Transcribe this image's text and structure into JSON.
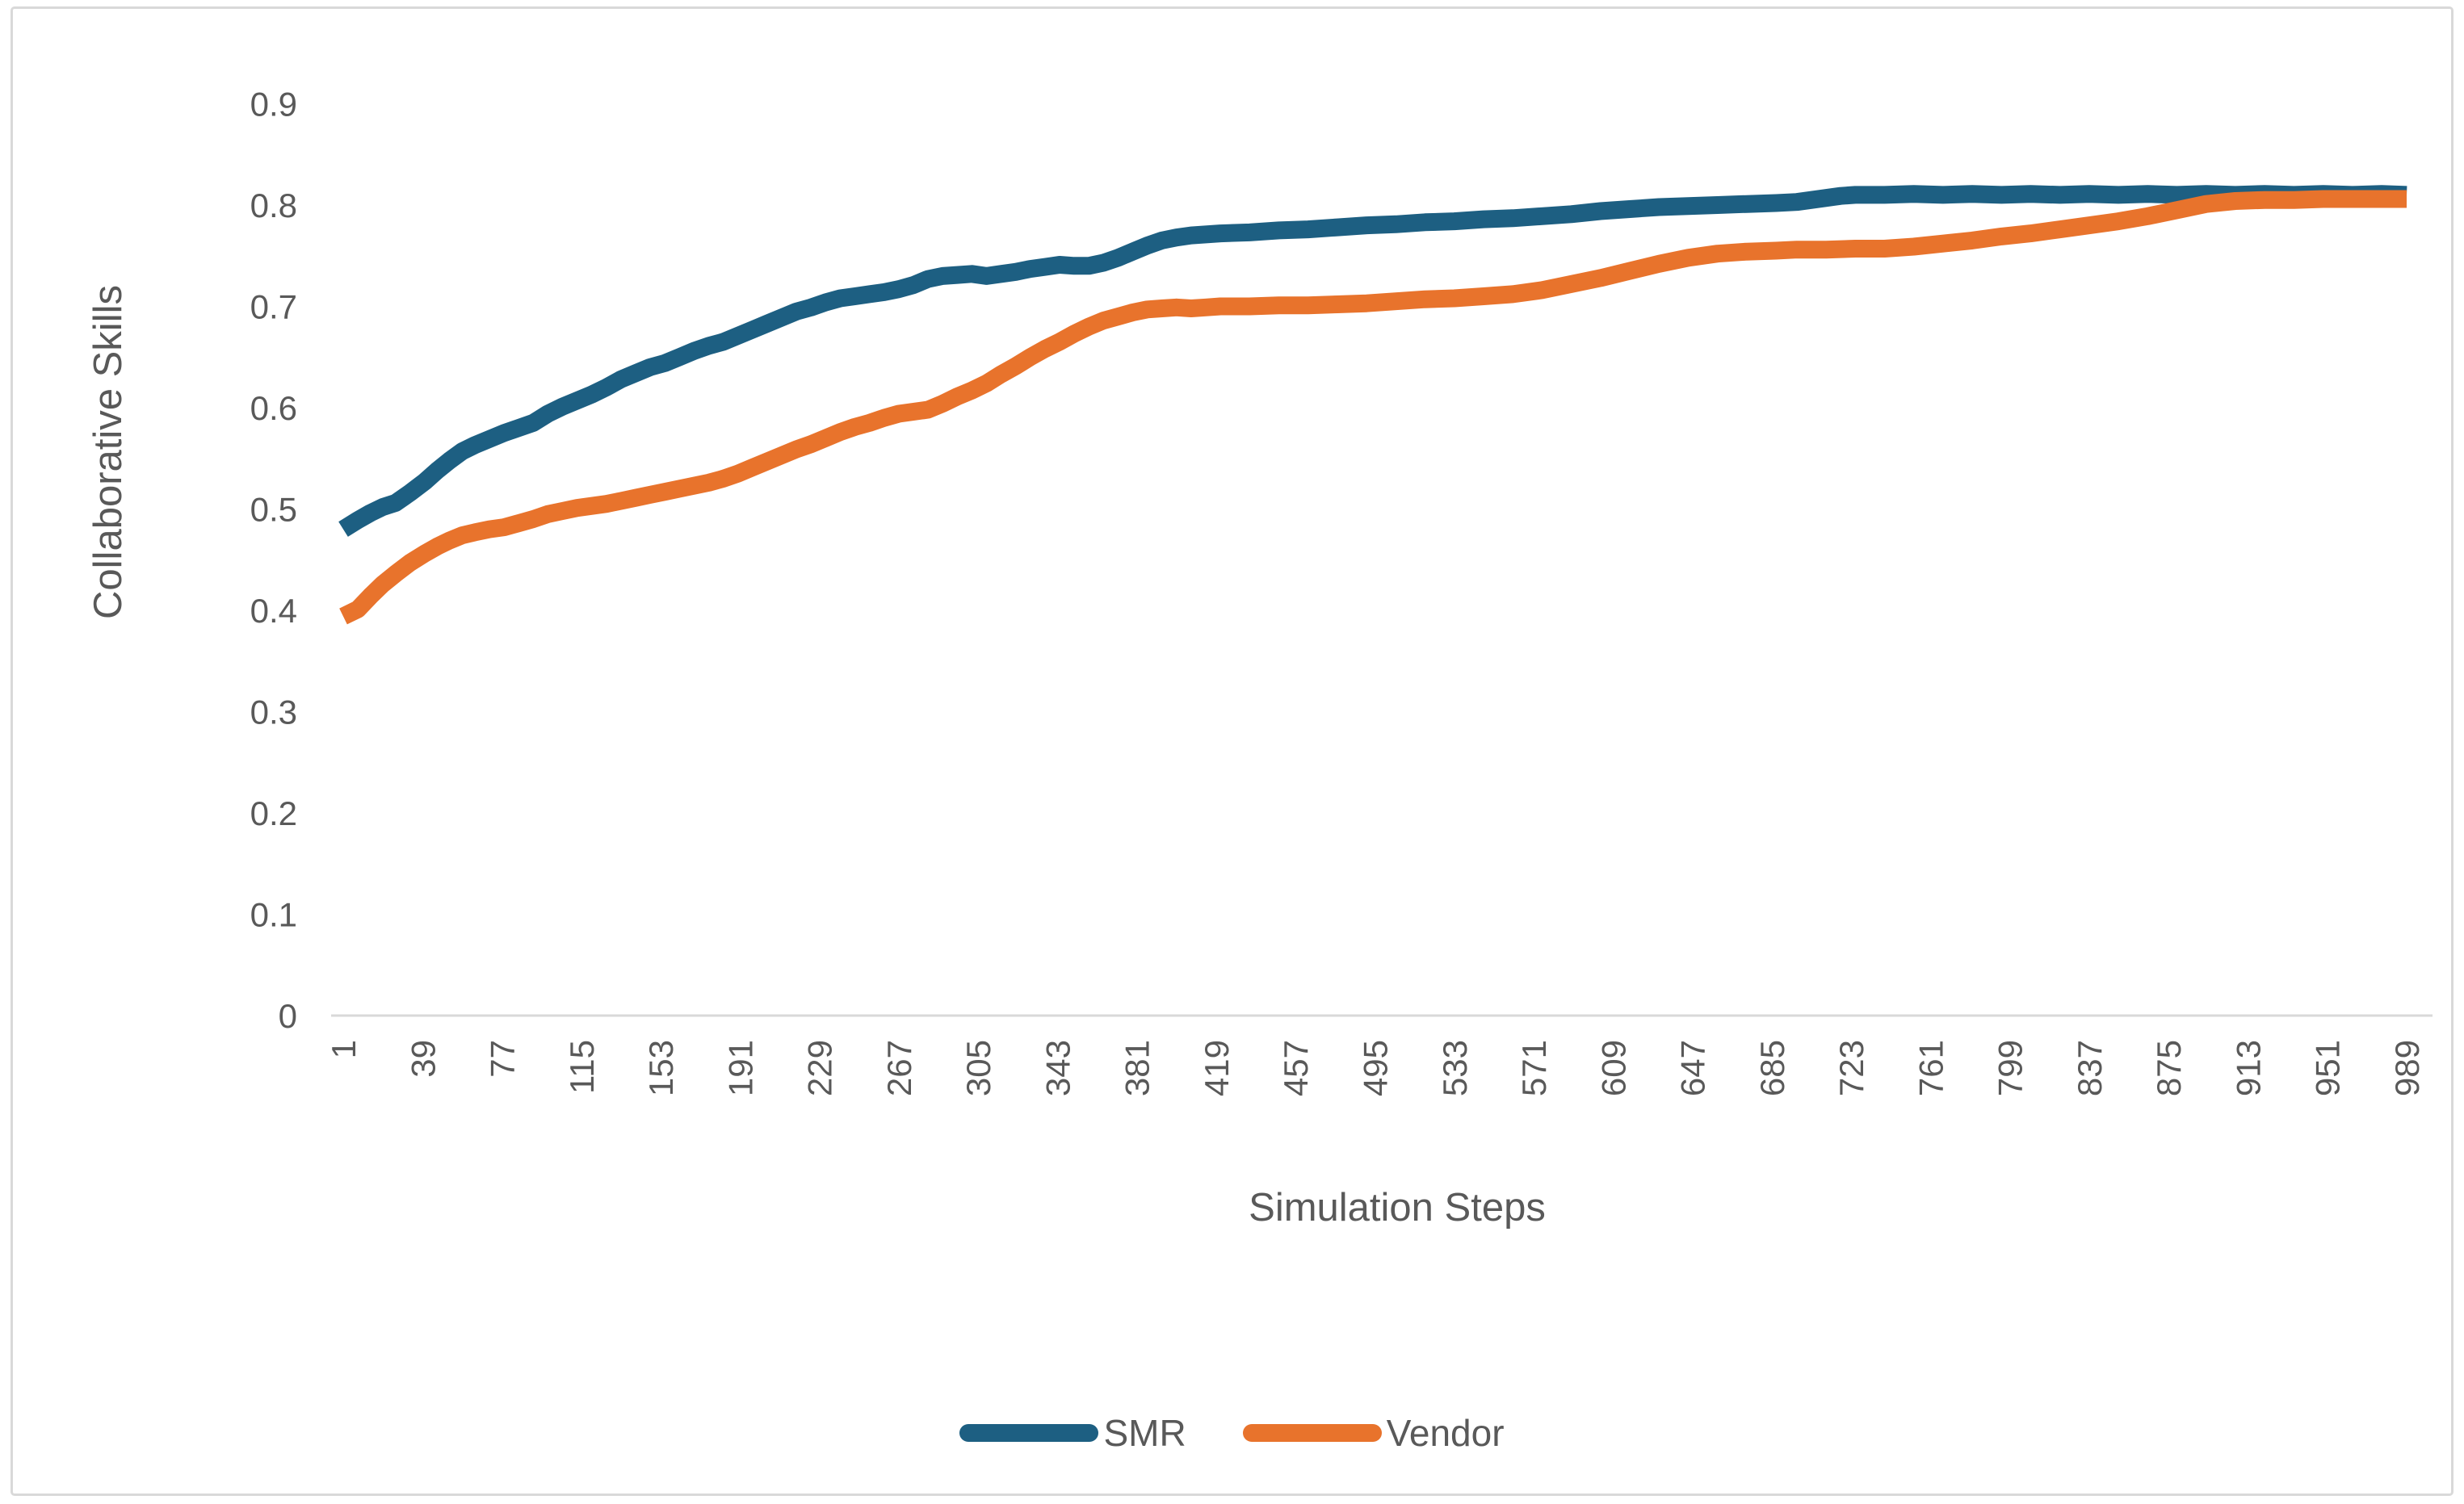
{
  "chart_data": {
    "type": "line",
    "title": "",
    "xlabel": "Simulation Steps",
    "ylabel": "Collaborative Skills",
    "xlim": [
      1,
      989
    ],
    "ylim": [
      0,
      0.9
    ],
    "grid": false,
    "legend_position": "bottom",
    "y_tick_labels": [
      "0",
      "0.1",
      "0.2",
      "0.3",
      "0.4",
      "0.5",
      "0.6",
      "0.7",
      "0.8",
      "0.9"
    ],
    "y_tick_values": [
      0,
      0.1,
      0.2,
      0.3,
      0.4,
      0.5,
      0.6,
      0.7,
      0.8,
      0.9
    ],
    "x_tick_labels": [
      1,
      39,
      77,
      115,
      153,
      191,
      229,
      267,
      305,
      343,
      381,
      419,
      457,
      495,
      533,
      571,
      609,
      647,
      685,
      723,
      761,
      799,
      837,
      875,
      913,
      951,
      989
    ],
    "series": [
      {
        "name": "SMR",
        "color": "#1D5F82",
        "points": [
          [
            1,
            0.48
          ],
          [
            8,
            0.489
          ],
          [
            14,
            0.496
          ],
          [
            20,
            0.502
          ],
          [
            26,
            0.506
          ],
          [
            33,
            0.516
          ],
          [
            40,
            0.527
          ],
          [
            46,
            0.538
          ],
          [
            52,
            0.548
          ],
          [
            58,
            0.557
          ],
          [
            64,
            0.563
          ],
          [
            71,
            0.569
          ],
          [
            78,
            0.575
          ],
          [
            85,
            0.58
          ],
          [
            92,
            0.585
          ],
          [
            99,
            0.594
          ],
          [
            106,
            0.601
          ],
          [
            113,
            0.607
          ],
          [
            120,
            0.613
          ],
          [
            127,
            0.62
          ],
          [
            134,
            0.628
          ],
          [
            141,
            0.634
          ],
          [
            148,
            0.64
          ],
          [
            155,
            0.644
          ],
          [
            162,
            0.65
          ],
          [
            169,
            0.656
          ],
          [
            176,
            0.661
          ],
          [
            183,
            0.665
          ],
          [
            190,
            0.671
          ],
          [
            197,
            0.677
          ],
          [
            204,
            0.683
          ],
          [
            211,
            0.689
          ],
          [
            218,
            0.695
          ],
          [
            225,
            0.699
          ],
          [
            232,
            0.704
          ],
          [
            239,
            0.708
          ],
          [
            246,
            0.71
          ],
          [
            253,
            0.712
          ],
          [
            260,
            0.714
          ],
          [
            267,
            0.717
          ],
          [
            274,
            0.721
          ],
          [
            281,
            0.727
          ],
          [
            288,
            0.73
          ],
          [
            295,
            0.731
          ],
          [
            302,
            0.732
          ],
          [
            309,
            0.73
          ],
          [
            316,
            0.732
          ],
          [
            323,
            0.734
          ],
          [
            330,
            0.737
          ],
          [
            337,
            0.739
          ],
          [
            344,
            0.741
          ],
          [
            351,
            0.74
          ],
          [
            358,
            0.74
          ],
          [
            365,
            0.743
          ],
          [
            372,
            0.748
          ],
          [
            379,
            0.754
          ],
          [
            386,
            0.76
          ],
          [
            393,
            0.765
          ],
          [
            400,
            0.768
          ],
          [
            407,
            0.77
          ],
          [
            414,
            0.771
          ],
          [
            421,
            0.772
          ],
          [
            435,
            0.773
          ],
          [
            449,
            0.775
          ],
          [
            463,
            0.776
          ],
          [
            477,
            0.778
          ],
          [
            491,
            0.78
          ],
          [
            505,
            0.781
          ],
          [
            519,
            0.783
          ],
          [
            533,
            0.784
          ],
          [
            547,
            0.786
          ],
          [
            561,
            0.787
          ],
          [
            575,
            0.789
          ],
          [
            589,
            0.791
          ],
          [
            603,
            0.794
          ],
          [
            617,
            0.796
          ],
          [
            631,
            0.798
          ],
          [
            645,
            0.799
          ],
          [
            659,
            0.8
          ],
          [
            673,
            0.801
          ],
          [
            687,
            0.802
          ],
          [
            697,
            0.803
          ],
          [
            704,
            0.805
          ],
          [
            711,
            0.807
          ],
          [
            718,
            0.809
          ],
          [
            725,
            0.81
          ],
          [
            739,
            0.81
          ],
          [
            753,
            0.811
          ],
          [
            767,
            0.81
          ],
          [
            781,
            0.811
          ],
          [
            795,
            0.81
          ],
          [
            809,
            0.811
          ],
          [
            823,
            0.81
          ],
          [
            837,
            0.811
          ],
          [
            851,
            0.81
          ],
          [
            865,
            0.811
          ],
          [
            879,
            0.81
          ],
          [
            893,
            0.811
          ],
          [
            907,
            0.81
          ],
          [
            921,
            0.811
          ],
          [
            935,
            0.81
          ],
          [
            949,
            0.811
          ],
          [
            963,
            0.81
          ],
          [
            977,
            0.811
          ],
          [
            989,
            0.81
          ]
        ]
      },
      {
        "name": "Vendor",
        "color": "#E8732C",
        "points": [
          [
            1,
            0.394
          ],
          [
            8,
            0.401
          ],
          [
            14,
            0.414
          ],
          [
            20,
            0.426
          ],
          [
            26,
            0.436
          ],
          [
            33,
            0.447
          ],
          [
            40,
            0.456
          ],
          [
            46,
            0.463
          ],
          [
            52,
            0.469
          ],
          [
            58,
            0.474
          ],
          [
            64,
            0.477
          ],
          [
            71,
            0.48
          ],
          [
            78,
            0.482
          ],
          [
            85,
            0.486
          ],
          [
            92,
            0.49
          ],
          [
            99,
            0.495
          ],
          [
            106,
            0.498
          ],
          [
            113,
            0.501
          ],
          [
            120,
            0.503
          ],
          [
            127,
            0.505
          ],
          [
            134,
            0.508
          ],
          [
            141,
            0.511
          ],
          [
            148,
            0.514
          ],
          [
            155,
            0.517
          ],
          [
            162,
            0.52
          ],
          [
            169,
            0.523
          ],
          [
            176,
            0.526
          ],
          [
            183,
            0.53
          ],
          [
            190,
            0.535
          ],
          [
            197,
            0.541
          ],
          [
            204,
            0.547
          ],
          [
            211,
            0.553
          ],
          [
            218,
            0.559
          ],
          [
            225,
            0.564
          ],
          [
            232,
            0.57
          ],
          [
            239,
            0.576
          ],
          [
            246,
            0.581
          ],
          [
            253,
            0.585
          ],
          [
            260,
            0.59
          ],
          [
            267,
            0.594
          ],
          [
            274,
            0.596
          ],
          [
            281,
            0.598
          ],
          [
            288,
            0.604
          ],
          [
            295,
            0.611
          ],
          [
            302,
            0.617
          ],
          [
            309,
            0.624
          ],
          [
            316,
            0.633
          ],
          [
            323,
            0.641
          ],
          [
            330,
            0.65
          ],
          [
            337,
            0.658
          ],
          [
            344,
            0.665
          ],
          [
            351,
            0.673
          ],
          [
            358,
            0.68
          ],
          [
            365,
            0.686
          ],
          [
            372,
            0.69
          ],
          [
            379,
            0.694
          ],
          [
            386,
            0.697
          ],
          [
            393,
            0.698
          ],
          [
            400,
            0.699
          ],
          [
            407,
            0.698
          ],
          [
            414,
            0.699
          ],
          [
            421,
            0.7
          ],
          [
            435,
            0.7
          ],
          [
            449,
            0.701
          ],
          [
            463,
            0.701
          ],
          [
            477,
            0.702
          ],
          [
            491,
            0.703
          ],
          [
            505,
            0.705
          ],
          [
            519,
            0.707
          ],
          [
            533,
            0.708
          ],
          [
            547,
            0.71
          ],
          [
            561,
            0.712
          ],
          [
            575,
            0.716
          ],
          [
            589,
            0.722
          ],
          [
            603,
            0.728
          ],
          [
            617,
            0.735
          ],
          [
            631,
            0.742
          ],
          [
            645,
            0.748
          ],
          [
            659,
            0.752
          ],
          [
            673,
            0.754
          ],
          [
            687,
            0.755
          ],
          [
            697,
            0.756
          ],
          [
            711,
            0.756
          ],
          [
            725,
            0.757
          ],
          [
            739,
            0.757
          ],
          [
            753,
            0.759
          ],
          [
            767,
            0.762
          ],
          [
            781,
            0.765
          ],
          [
            795,
            0.769
          ],
          [
            809,
            0.772
          ],
          [
            823,
            0.776
          ],
          [
            837,
            0.78
          ],
          [
            851,
            0.784
          ],
          [
            865,
            0.789
          ],
          [
            879,
            0.795
          ],
          [
            893,
            0.801
          ],
          [
            907,
            0.804
          ],
          [
            921,
            0.805
          ],
          [
            935,
            0.805
          ],
          [
            949,
            0.806
          ],
          [
            963,
            0.806
          ],
          [
            977,
            0.806
          ],
          [
            989,
            0.806
          ]
        ]
      }
    ]
  },
  "legend": {
    "items": [
      {
        "label": "SMR"
      },
      {
        "label": "Vendor"
      }
    ]
  },
  "colors": {
    "axis_line": "#D9D9D9",
    "frame_border": "#D9D9D9",
    "text": "#595959",
    "background": "#FFFFFF"
  }
}
